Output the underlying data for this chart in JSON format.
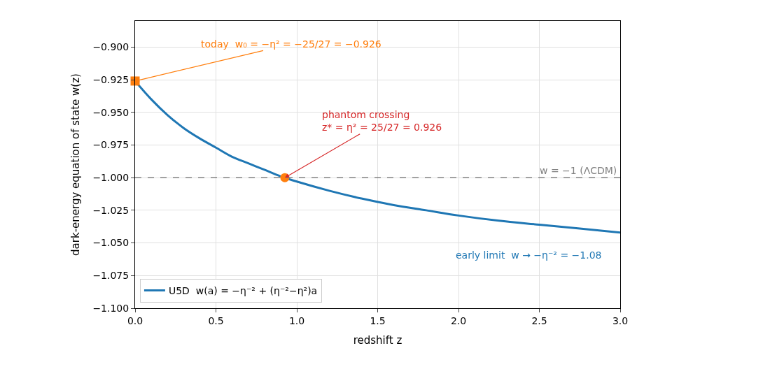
{
  "chart_data": {
    "type": "line",
    "xlabel": "redshift z",
    "ylabel": "dark-energy equation of state w(z)",
    "xlim": [
      0,
      3
    ],
    "xticks": [
      {
        "value": 0,
        "label": "0.0"
      },
      {
        "value": 0.5,
        "label": "0.5"
      },
      {
        "value": 1,
        "label": "1.0"
      },
      {
        "value": 1.5,
        "label": "1.5"
      },
      {
        "value": 2,
        "label": "2.0"
      },
      {
        "value": 2.5,
        "label": "2.5"
      },
      {
        "value": 3,
        "label": "3.0"
      }
    ],
    "ylim": [
      -1.1,
      -0.88
    ],
    "yticks": [
      {
        "value": -1.1,
        "label": "−1.100"
      },
      {
        "value": -1.075,
        "label": "−1.075"
      },
      {
        "value": -1.05,
        "label": "−1.050"
      },
      {
        "value": -1.025,
        "label": "−1.025"
      },
      {
        "value": -1.0,
        "label": "−1.000"
      },
      {
        "value": -0.975,
        "label": "−0.975"
      },
      {
        "value": -0.95,
        "label": "−0.950"
      },
      {
        "value": -0.925,
        "label": "−0.925"
      },
      {
        "value": -0.9,
        "label": "−0.900"
      }
    ],
    "grid": true,
    "legend": "bottom left",
    "series": [
      {
        "name": "U5D  w(a) = −η⁻² + (η⁻²−η²)a",
        "color": "#1f77b4",
        "marker": "none",
        "line_style": "solid",
        "x": [
          0,
          0.1,
          0.2,
          0.3,
          0.4,
          0.5,
          0.6,
          0.7,
          0.8,
          0.9,
          1.0,
          1.2,
          1.4,
          1.6,
          1.8,
          2.0,
          2.25,
          2.5,
          2.75,
          3.0
        ],
        "values": [
          -0.926,
          -0.94,
          -0.952,
          -0.962,
          -0.97,
          -0.977,
          -0.984,
          -0.989,
          -0.994,
          -0.999,
          -1.003,
          -1.01,
          -1.016,
          -1.021,
          -1.025,
          -1.029,
          -1.033,
          -1.036,
          -1.039,
          -1.042
        ]
      },
      {
        "type": "scatter",
        "color": "#ff7f0e",
        "marker": "square",
        "x": [
          0
        ],
        "values": [
          -0.926
        ]
      },
      {
        "type": "scatter",
        "color": "#ff7f0e",
        "marker": "circle",
        "x": [
          0.926
        ],
        "values": [
          -1.0
        ]
      }
    ],
    "ref_lines": [
      {
        "axis": "y",
        "value": -1.0,
        "label": "w = −1 (ΛCDM)",
        "color": "#808080",
        "line_style": "dashed"
      }
    ],
    "annotations": [
      {
        "text": "today  w₀ = −η² = −25/27 = −0.926",
        "x": 0,
        "y": -0.926
      },
      {
        "text": "phantom crossing\nz* = η² = 25/27 = 0.926",
        "x": 0.926,
        "y": -1.0
      },
      "early limit  w → −η⁻² = −1.08"
    ]
  }
}
